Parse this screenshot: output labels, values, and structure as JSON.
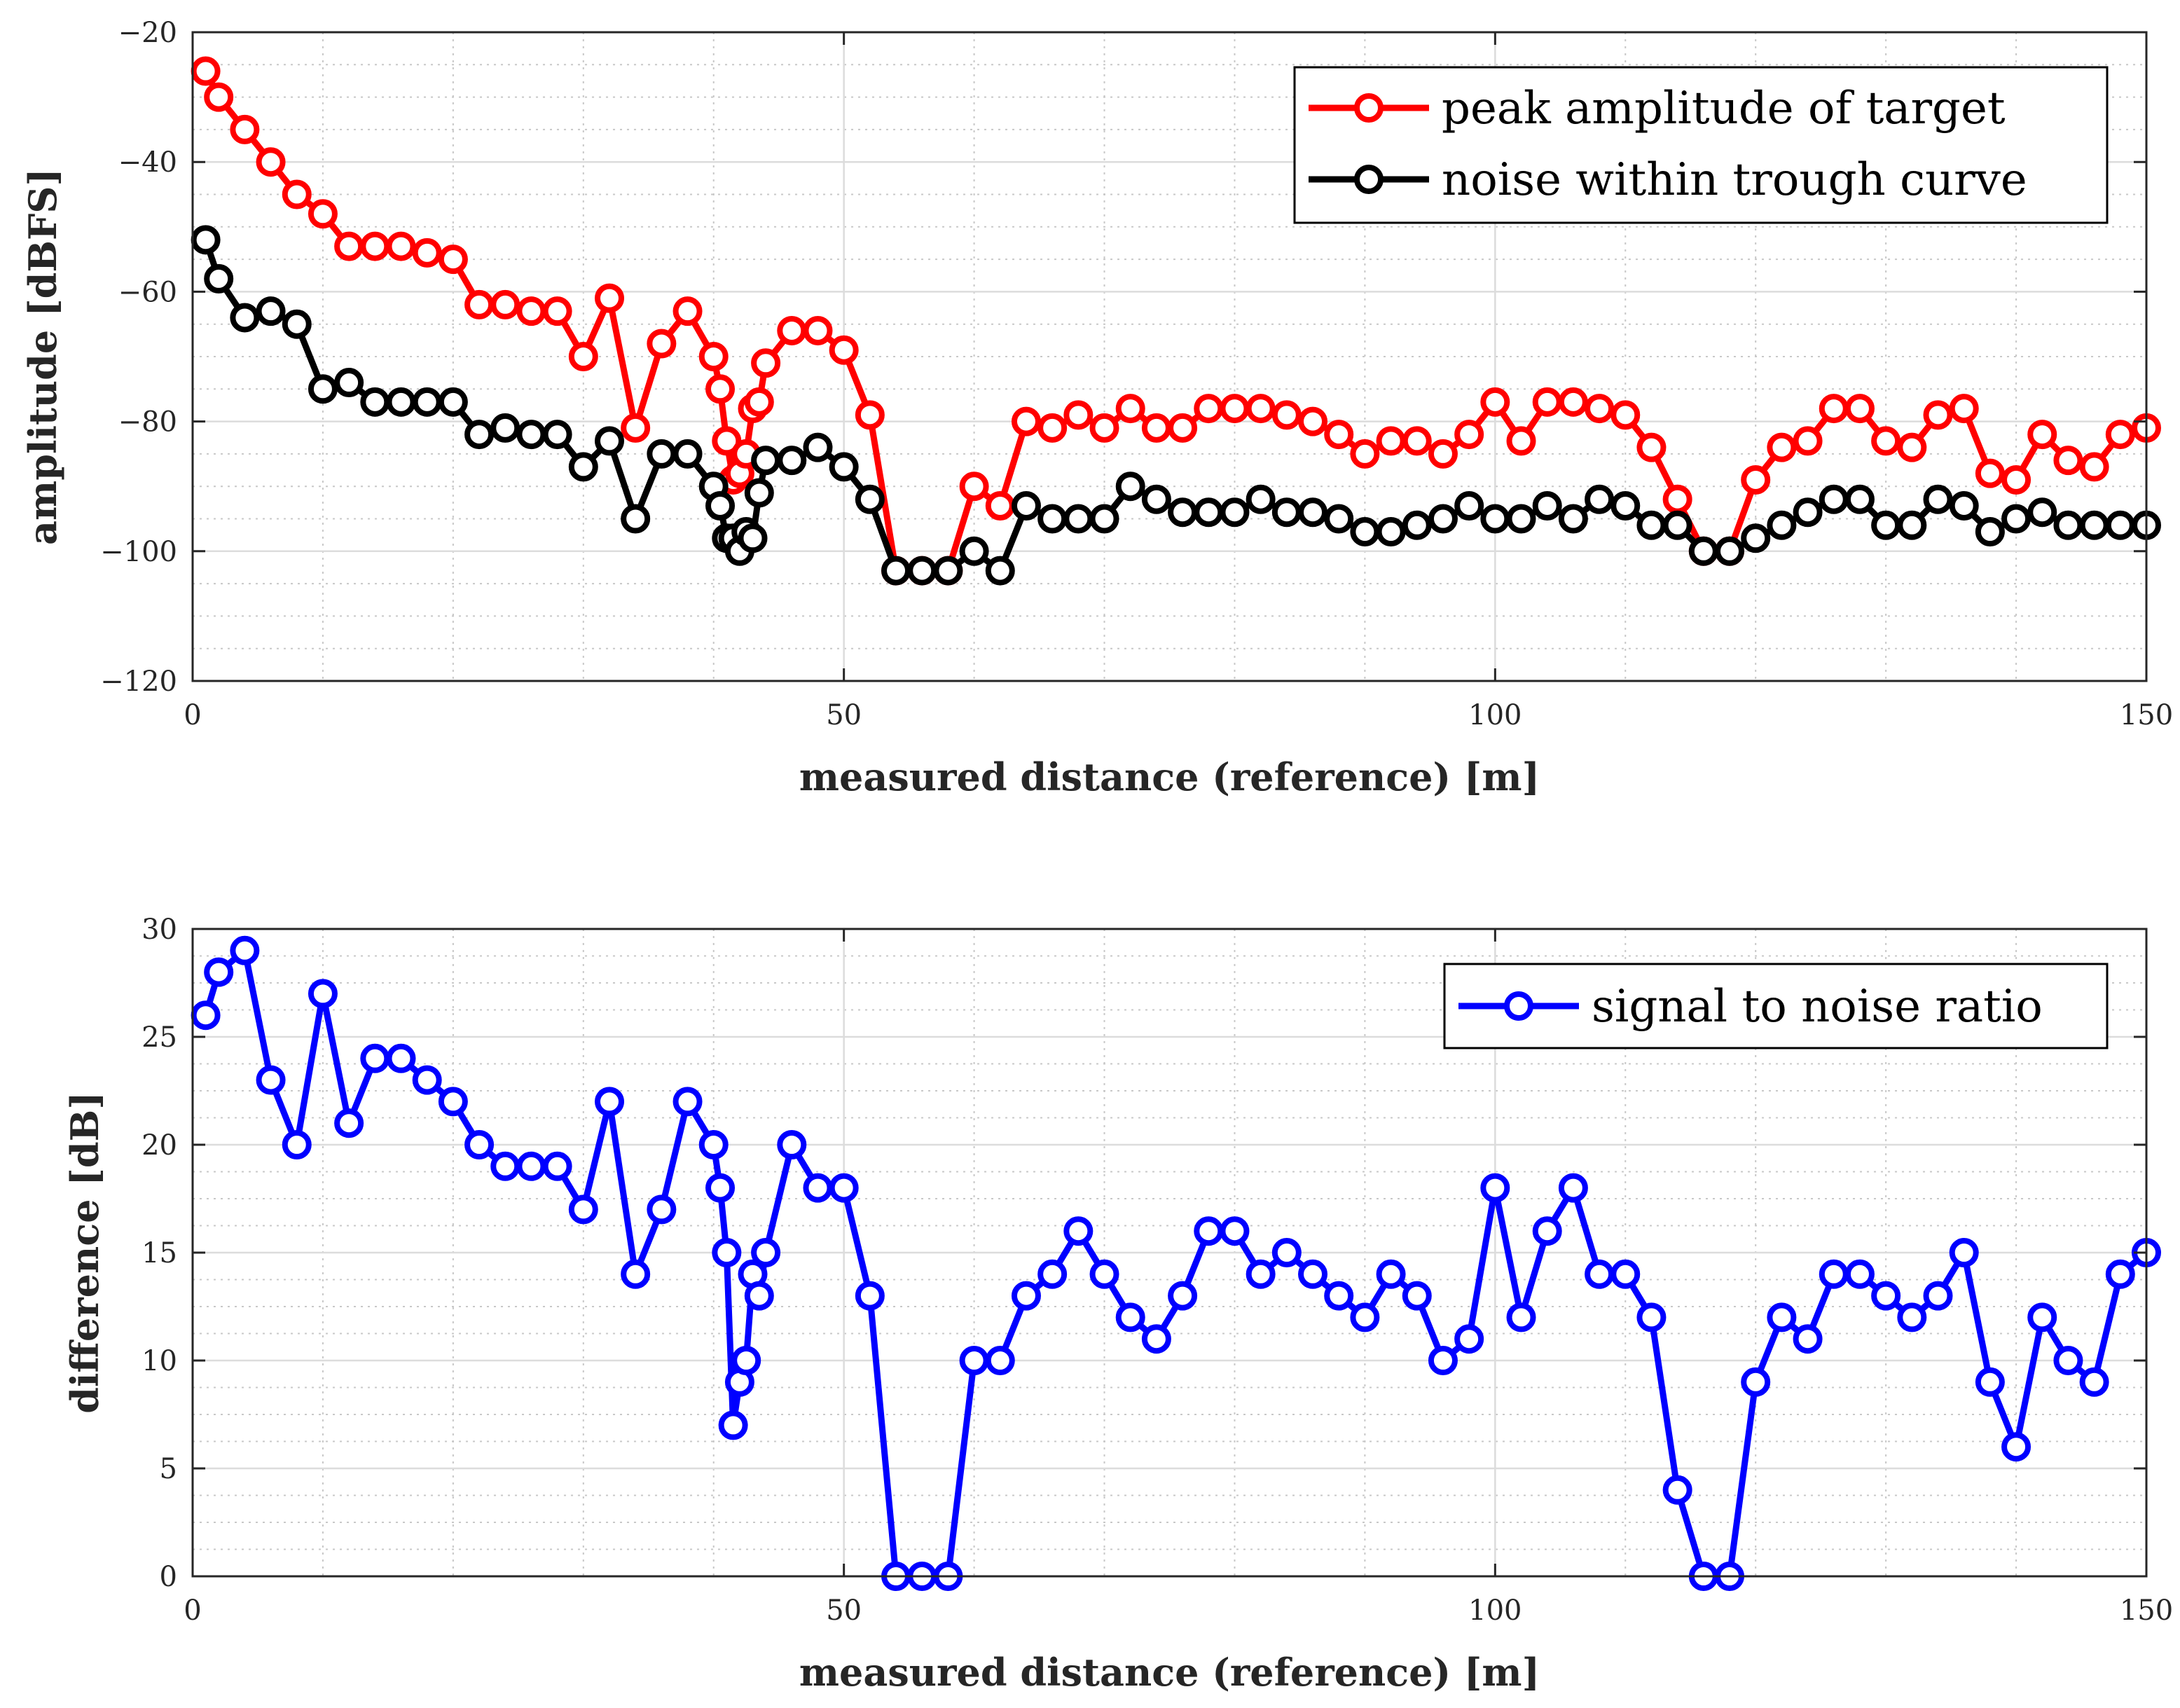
{
  "chart_data": [
    {
      "type": "line",
      "xlabel": "measured distance (reference) [m]",
      "ylabel": "amplitude [dBFS]",
      "xlim": [
        0,
        150
      ],
      "ylim": [
        -120,
        -20
      ],
      "xticks": [
        0,
        50,
        100,
        150
      ],
      "yticks": [
        -120,
        -100,
        -80,
        -60,
        -40,
        -20
      ],
      "ytick_labels": [
        "−120",
        "−100",
        "−80",
        "−60",
        "−40",
        "−20"
      ],
      "grid": true,
      "minor_grid": true,
      "legend": "top-right",
      "series": [
        {
          "name": "peak amplitude of target",
          "color": "#ff0000",
          "marker": "circle",
          "x": [
            1,
            2,
            4,
            6,
            8,
            10,
            12,
            14,
            16,
            18,
            20,
            22,
            24,
            26,
            28,
            30,
            32,
            34,
            36,
            38,
            40,
            40.5,
            41,
            41.5,
            42,
            42.5,
            43,
            43.5,
            44,
            46,
            48,
            50,
            52,
            54,
            56,
            58,
            60,
            62,
            64,
            66,
            68,
            70,
            72,
            74,
            76,
            78,
            80,
            82,
            84,
            86,
            88,
            90,
            92,
            94,
            96,
            98,
            100,
            102,
            104,
            106,
            108,
            110,
            112,
            114,
            116,
            118,
            120,
            122,
            124,
            126,
            128,
            130,
            132,
            134,
            136,
            138,
            140,
            142,
            144,
            146,
            148,
            150
          ],
          "y": [
            -26,
            -30,
            -35,
            -40,
            -45,
            -48,
            -53,
            -53,
            -53,
            -54,
            -55,
            -62,
            -62,
            -63,
            -63,
            -70,
            -61,
            -81,
            -68,
            -63,
            -70,
            -75,
            -83,
            -89,
            -88,
            -85,
            -78,
            -77,
            -71,
            -66,
            -66,
            -69,
            -79,
            -103,
            -103,
            -103,
            -90,
            -93,
            -80,
            -81,
            -79,
            -81,
            -78,
            -81,
            -81,
            -78,
            -78,
            -78,
            -79,
            -80,
            -82,
            -85,
            -83,
            -83,
            -85,
            -82,
            -77,
            -83,
            -77,
            -77,
            -78,
            -79,
            -84,
            -92,
            -100,
            -100,
            -89,
            -84,
            -83,
            -78,
            -78,
            -83,
            -84,
            -79,
            -78,
            -88,
            -89,
            -82,
            -86,
            -87,
            -82,
            -81
          ]
        },
        {
          "name": "noise within trough curve",
          "color": "#000000",
          "marker": "circle",
          "x": [
            1,
            2,
            4,
            6,
            8,
            10,
            12,
            14,
            16,
            18,
            20,
            22,
            24,
            26,
            28,
            30,
            32,
            34,
            36,
            38,
            40,
            40.5,
            41,
            41.5,
            42,
            42.5,
            43,
            43.5,
            44,
            46,
            48,
            50,
            52,
            54,
            56,
            58,
            60,
            62,
            64,
            66,
            68,
            70,
            72,
            74,
            76,
            78,
            80,
            82,
            84,
            86,
            88,
            90,
            92,
            94,
            96,
            98,
            100,
            102,
            104,
            106,
            108,
            110,
            112,
            114,
            116,
            118,
            120,
            122,
            124,
            126,
            128,
            130,
            132,
            134,
            136,
            138,
            140,
            142,
            144,
            146,
            148,
            150
          ],
          "y": [
            -52,
            -58,
            -64,
            -63,
            -65,
            -75,
            -74,
            -77,
            -77,
            -77,
            -77,
            -82,
            -81,
            -82,
            -82,
            -87,
            -83,
            -95,
            -85,
            -85,
            -90,
            -93,
            -98,
            -98,
            -100,
            -97,
            -98,
            -91,
            -86,
            -86,
            -84,
            -87,
            -92,
            -103,
            -103,
            -103,
            -100,
            -103,
            -93,
            -95,
            -95,
            -95,
            -90,
            -92,
            -94,
            -94,
            -94,
            -92,
            -94,
            -94,
            -95,
            -97,
            -97,
            -96,
            -95,
            -93,
            -95,
            -95,
            -93,
            -95,
            -92,
            -93,
            -96,
            -96,
            -100,
            -100,
            -98,
            -96,
            -94,
            -92,
            -92,
            -96,
            -96,
            -92,
            -93,
            -97,
            -95,
            -94,
            -96,
            -96,
            -96,
            -96
          ]
        }
      ]
    },
    {
      "type": "line",
      "xlabel": "measured distance (reference) [m]",
      "ylabel": "difference [dB]",
      "xlim": [
        0,
        150
      ],
      "ylim": [
        0,
        30
      ],
      "xticks": [
        0,
        50,
        100,
        150
      ],
      "yticks": [
        0,
        5,
        10,
        15,
        20,
        25,
        30
      ],
      "ytick_labels": [
        "0",
        "5",
        "10",
        "15",
        "20",
        "25",
        "30"
      ],
      "grid": true,
      "minor_grid": true,
      "legend": "top-right",
      "series": [
        {
          "name": "signal to noise ratio",
          "color": "#0000ff",
          "marker": "circle",
          "x": [
            1,
            2,
            4,
            6,
            8,
            10,
            12,
            14,
            16,
            18,
            20,
            22,
            24,
            26,
            28,
            30,
            32,
            34,
            36,
            38,
            40,
            40.5,
            41,
            41.5,
            42,
            42.5,
            43,
            43.5,
            44,
            46,
            48,
            50,
            52,
            54,
            56,
            58,
            60,
            62,
            64,
            66,
            68,
            70,
            72,
            74,
            76,
            78,
            80,
            82,
            84,
            86,
            88,
            90,
            92,
            94,
            96,
            98,
            100,
            102,
            104,
            106,
            108,
            110,
            112,
            114,
            116,
            118,
            120,
            122,
            124,
            126,
            128,
            130,
            132,
            134,
            136,
            138,
            140,
            142,
            144,
            146,
            148,
            150
          ],
          "y": [
            26,
            28,
            29,
            23,
            20,
            27,
            21,
            24,
            24,
            23,
            22,
            20,
            19,
            19,
            19,
            17,
            22,
            14,
            17,
            22,
            20,
            18,
            15,
            7,
            9,
            10,
            14,
            13,
            15,
            20,
            18,
            18,
            13,
            0,
            0,
            0,
            10,
            10,
            13,
            14,
            16,
            14,
            12,
            11,
            13,
            16,
            16,
            14,
            15,
            14,
            13,
            12,
            14,
            13,
            10,
            11,
            18,
            12,
            16,
            18,
            14,
            14,
            12,
            4,
            0,
            0,
            9,
            12,
            11,
            14,
            14,
            13,
            12,
            13,
            15,
            9,
            6,
            12,
            10,
            9,
            14,
            15
          ]
        }
      ]
    }
  ]
}
